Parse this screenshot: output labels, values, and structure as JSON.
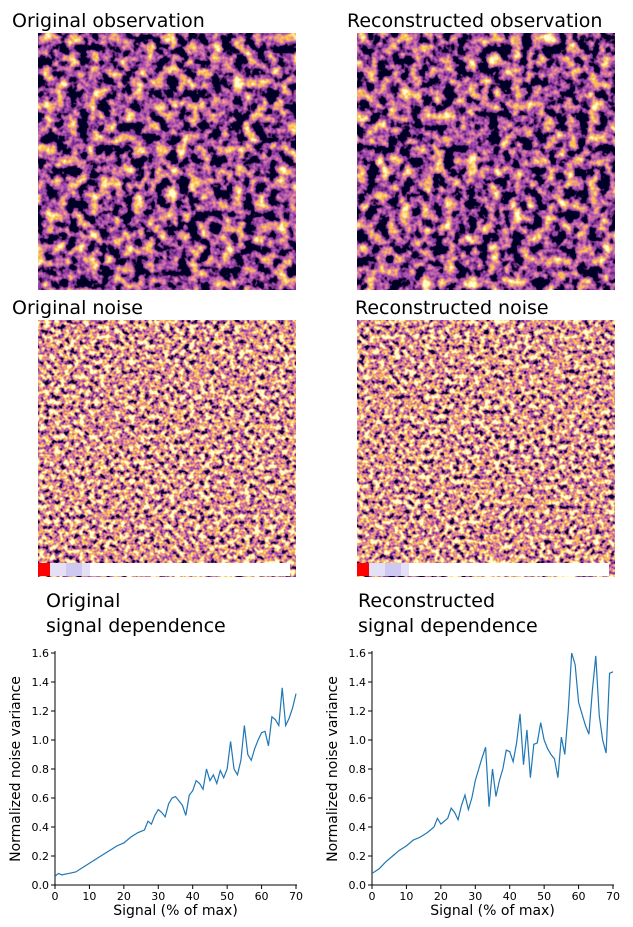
{
  "images": [
    {
      "title": "Original observation"
    },
    {
      "title": "Reconstructed observation"
    },
    {
      "title": "Original noise"
    },
    {
      "title": "Reconstructed noise"
    }
  ],
  "chart_data": [
    {
      "type": "line",
      "title": [
        "Original",
        "signal dependence"
      ],
      "x_label": "Signal (% of max)",
      "y_label": "Normalized noise variance",
      "x": [
        0,
        1,
        2,
        4,
        6,
        8,
        10,
        12,
        14,
        16,
        18,
        20,
        22,
        24,
        26,
        27,
        28,
        29,
        30,
        31,
        32,
        33,
        34,
        35,
        36,
        37,
        38,
        39,
        40,
        41,
        42,
        43,
        44,
        45,
        46,
        47,
        48,
        49,
        50,
        51,
        52,
        53,
        54,
        55,
        56,
        57,
        58,
        59,
        60,
        61,
        62,
        63,
        64,
        65,
        66,
        67,
        68,
        69,
        70
      ],
      "series": [
        {
          "name": "Original",
          "color": "#1f77b4",
          "values": [
            0.06,
            0.08,
            0.07,
            0.08,
            0.09,
            0.12,
            0.15,
            0.18,
            0.21,
            0.24,
            0.27,
            0.29,
            0.33,
            0.36,
            0.38,
            0.44,
            0.42,
            0.48,
            0.52,
            0.5,
            0.47,
            0.56,
            0.6,
            0.61,
            0.58,
            0.55,
            0.48,
            0.62,
            0.65,
            0.72,
            0.7,
            0.66,
            0.8,
            0.72,
            0.76,
            0.7,
            0.79,
            0.74,
            0.8,
            0.99,
            0.8,
            0.76,
            0.86,
            1.1,
            0.9,
            0.86,
            0.94,
            1.0,
            1.05,
            1.06,
            0.96,
            1.16,
            1.14,
            1.1,
            1.36,
            1.1,
            1.15,
            1.22,
            1.32
          ]
        }
      ],
      "xlim": [
        0,
        70
      ],
      "xticks": [
        0,
        10,
        20,
        30,
        40,
        50,
        60,
        70
      ],
      "ylim": [
        0,
        1.6
      ],
      "yticks": [
        {
          "value": 0,
          "label": "0.0"
        },
        0.2,
        0.4,
        0.6,
        0.8,
        {
          "value": 1,
          "label": "1.0"
        },
        1.2,
        1.4,
        1.6
      ]
    },
    {
      "type": "line",
      "title": [
        "Reconstructed",
        "signal dependence"
      ],
      "x_label": "Signal (% of max)",
      "y_label": "Normalized noise variance",
      "x": [
        0,
        2,
        4,
        6,
        8,
        10,
        12,
        14,
        16,
        18,
        19,
        20,
        22,
        23,
        24,
        25,
        26,
        27,
        28,
        29,
        30,
        31,
        32,
        33,
        34,
        35,
        36,
        37,
        38,
        39,
        40,
        41,
        42,
        43,
        44,
        45,
        46,
        47,
        48,
        49,
        50,
        51,
        52,
        53,
        54,
        55,
        56,
        57,
        58,
        59,
        60,
        61,
        62,
        63,
        64,
        65,
        66,
        67,
        68,
        69,
        70
      ],
      "series": [
        {
          "name": "Reconstructed",
          "color": "#1f77b4",
          "values": [
            0.08,
            0.11,
            0.16,
            0.2,
            0.24,
            0.27,
            0.31,
            0.33,
            0.36,
            0.4,
            0.46,
            0.42,
            0.46,
            0.53,
            0.5,
            0.45,
            0.55,
            0.62,
            0.52,
            0.6,
            0.72,
            0.8,
            0.88,
            0.95,
            0.54,
            0.8,
            0.61,
            0.72,
            0.8,
            0.93,
            0.92,
            0.85,
            0.98,
            1.18,
            0.83,
            1.07,
            0.74,
            0.97,
            0.98,
            1.12,
            1.0,
            0.94,
            0.9,
            0.87,
            0.74,
            1.02,
            0.9,
            1.2,
            1.6,
            1.52,
            1.26,
            1.18,
            1.1,
            1.04,
            1.34,
            1.58,
            1.17,
            1.0,
            0.91,
            1.46,
            1.47
          ]
        }
      ],
      "xlim": [
        0,
        70
      ],
      "xticks": [
        0,
        10,
        20,
        30,
        40,
        50,
        60,
        70
      ],
      "ylim": [
        0,
        1.6
      ],
      "yticks": [
        {
          "value": 0,
          "label": "0.0"
        },
        0.2,
        0.4,
        0.6,
        0.8,
        {
          "value": 1,
          "label": "1.0"
        },
        1.2,
        1.4,
        1.6
      ]
    }
  ]
}
